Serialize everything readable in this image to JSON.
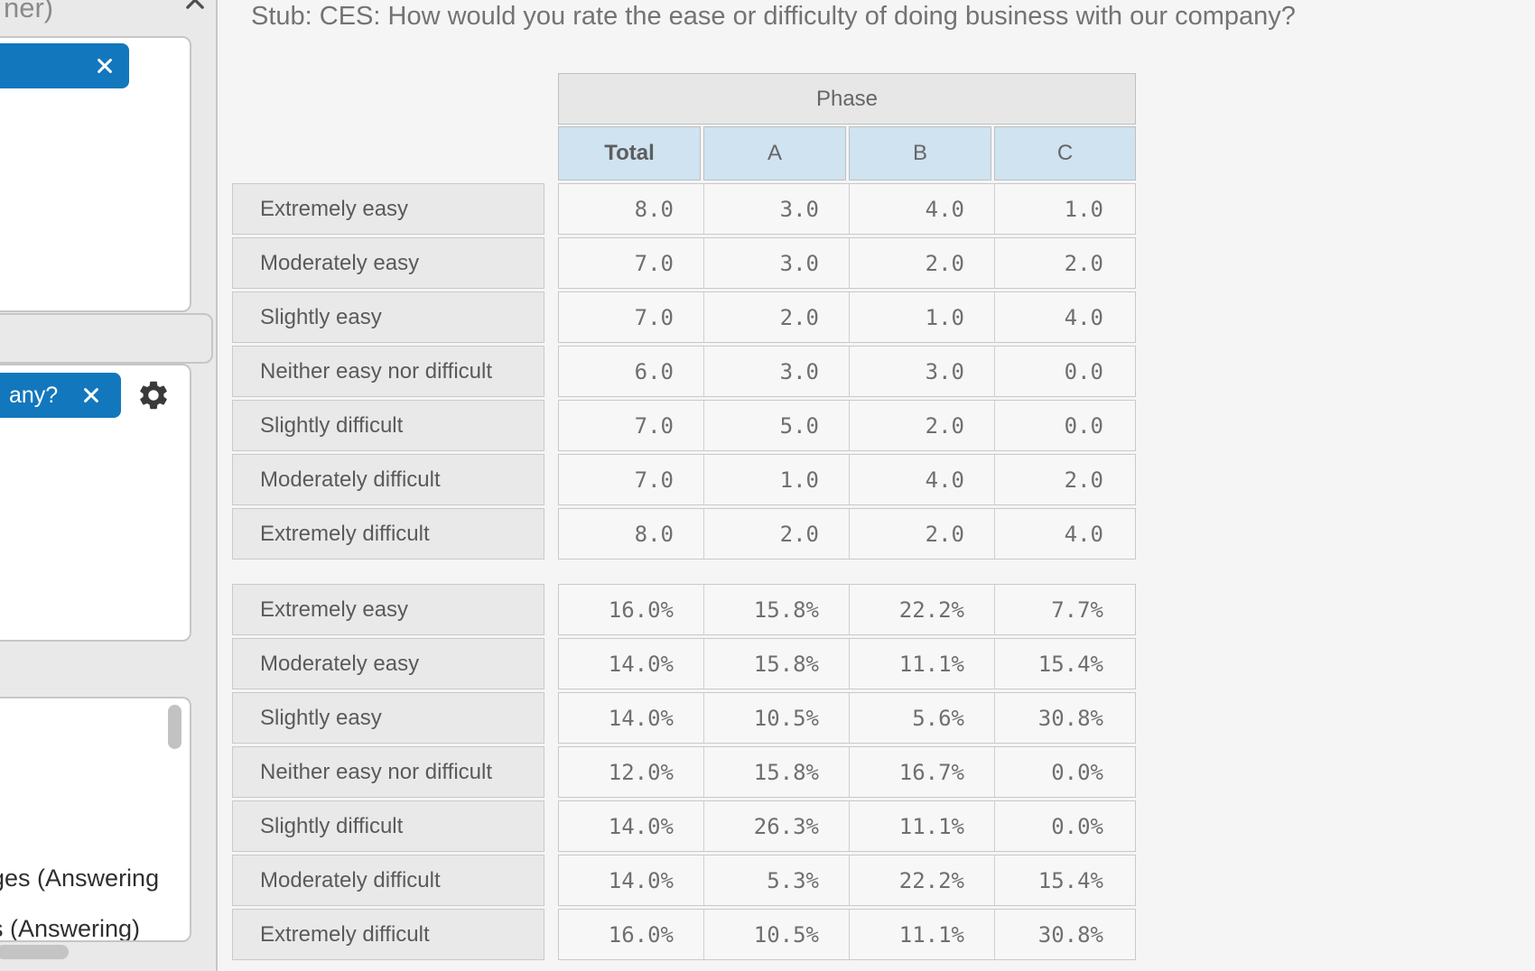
{
  "sidebar": {
    "truncated_header_text": "ner)",
    "panel2_chip_text": "any?",
    "panel3_lines": [
      "ges (Answering",
      "s (Answering)"
    ]
  },
  "main": {
    "title": "Stub: CES: How would you rate the ease or difficulty of doing business with our company?"
  },
  "accent_colors": {
    "chip_blue": "#1377bd",
    "column_header_blue": "#cfe3f1",
    "banner_header_gray": "#e7e7e8",
    "row_label_gray": "#e9e9e9"
  },
  "chart_data": {
    "type": "table",
    "title": "Stub: CES: How would you rate the ease or difficulty of doing business with our company?",
    "banner_label": "Phase",
    "columns": [
      "Total",
      "A",
      "B",
      "C"
    ],
    "row_labels": [
      "Extremely easy",
      "Moderately easy",
      "Slightly easy",
      "Neither easy nor difficult",
      "Slightly difficult",
      "Moderately difficult",
      "Extremely difficult"
    ],
    "counts": [
      [
        8,
        3,
        4,
        1
      ],
      [
        7,
        3,
        2,
        2
      ],
      [
        7,
        2,
        1,
        4
      ],
      [
        6,
        3,
        3,
        0
      ],
      [
        7,
        5,
        2,
        0
      ],
      [
        7,
        1,
        4,
        2
      ],
      [
        8,
        2,
        2,
        4
      ]
    ],
    "percents": [
      [
        16.0,
        15.8,
        22.2,
        7.7
      ],
      [
        14.0,
        15.8,
        11.1,
        15.4
      ],
      [
        14.0,
        10.5,
        5.6,
        30.8
      ],
      [
        12.0,
        15.8,
        16.7,
        0.0
      ],
      [
        14.0,
        26.3,
        11.1,
        0.0
      ],
      [
        14.0,
        5.3,
        22.2,
        15.4
      ],
      [
        16.0,
        10.5,
        11.1,
        30.8
      ]
    ]
  }
}
